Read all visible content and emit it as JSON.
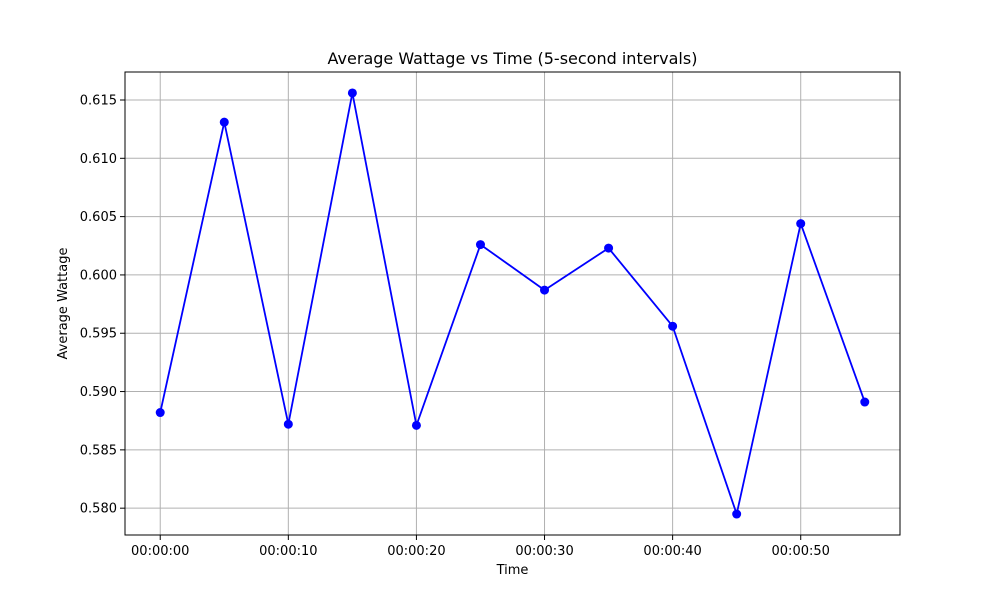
{
  "chart_data": {
    "type": "line",
    "title": "Average Wattage vs Time (5-second intervals)",
    "xlabel": "Time",
    "ylabel": "Average Wattage",
    "x": [
      "00:00:00",
      "00:00:05",
      "00:00:10",
      "00:00:15",
      "00:00:20",
      "00:00:25",
      "00:00:30",
      "00:00:35",
      "00:00:40",
      "00:00:45",
      "00:00:50",
      "00:00:55"
    ],
    "x_tick_labels": [
      "00:00:00",
      "00:00:10",
      "00:00:20",
      "00:00:30",
      "00:00:40",
      "00:00:50"
    ],
    "series": [
      {
        "values": [
          0.5882,
          0.6131,
          0.5872,
          0.6156,
          0.5871,
          0.6026,
          0.5987,
          0.6023,
          0.5956,
          0.5795,
          0.6044,
          0.5891
        ],
        "color": "#0000ff",
        "marker": "circle"
      }
    ],
    "xlim_seconds": [
      -2.75,
      57.75
    ],
    "ylim": [
      0.5777,
      0.6174
    ],
    "y_ticks": [
      0.58,
      0.585,
      0.59,
      0.595,
      0.6,
      0.605,
      0.61,
      0.615
    ],
    "y_tick_labels": [
      "0.580",
      "0.585",
      "0.590",
      "0.595",
      "0.600",
      "0.605",
      "0.610",
      "0.615"
    ],
    "grid": true,
    "legend": "none"
  }
}
